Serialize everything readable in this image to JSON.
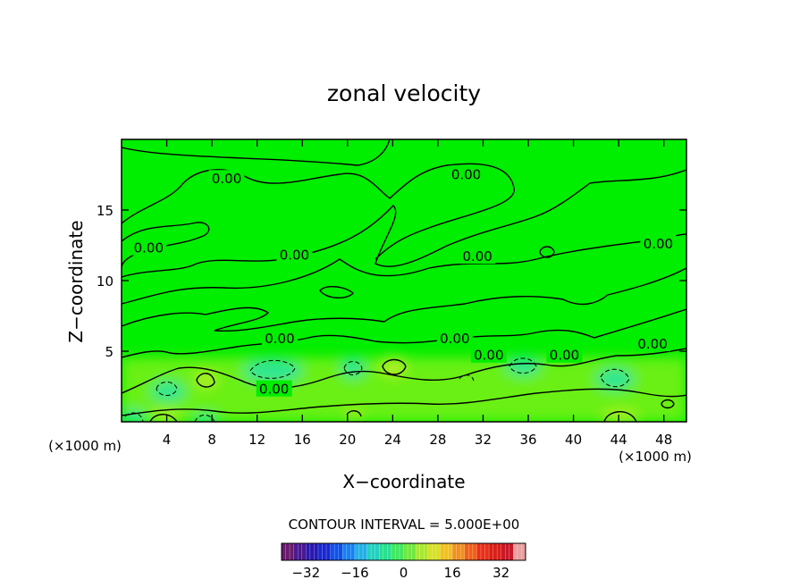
{
  "chart_data": {
    "type": "heatmap",
    "title": "zonal velocity",
    "xlabel": "X−coordinate",
    "ylabel": "Z−coordinate",
    "x_unit_label": "(×1000 m)",
    "x_unit_label_right": "(×1000 m)",
    "xlim": [
      0,
      50
    ],
    "ylim": [
      0,
      20
    ],
    "x_ticks": [
      4,
      8,
      12,
      16,
      20,
      24,
      28,
      32,
      36,
      40,
      44,
      48
    ],
    "y_ticks": [
      5,
      10,
      15
    ],
    "contour_interval_text": "CONTOUR INTERVAL = 5.000E+00",
    "contour_labels": [
      {
        "text": "0.00",
        "x": 9.3,
        "y": 17.2
      },
      {
        "text": "0.00",
        "x": 30.5,
        "y": 17.5
      },
      {
        "text": "0.00",
        "x": 2.4,
        "y": 12.3
      },
      {
        "text": "0.00",
        "x": 15.3,
        "y": 11.8
      },
      {
        "text": "0.00",
        "x": 31.5,
        "y": 11.7
      },
      {
        "text": "0.00",
        "x": 47.5,
        "y": 12.6
      },
      {
        "text": "0.00",
        "x": 14.0,
        "y": 5.9
      },
      {
        "text": "0.00",
        "x": 29.5,
        "y": 5.9
      },
      {
        "text": "0.00",
        "x": 32.5,
        "y": 4.7
      },
      {
        "text": "0.00",
        "x": 39.2,
        "y": 4.7
      },
      {
        "text": "0.00",
        "x": 47.0,
        "y": 5.5
      },
      {
        "text": "0.00",
        "x": 13.5,
        "y": 2.3
      }
    ],
    "colorbar": {
      "range": [
        -40,
        40
      ],
      "ticks": [
        -32,
        -16,
        0,
        16,
        32
      ],
      "colors": [
        "#6a1b6e",
        "#4a1890",
        "#2a19b0",
        "#1828d0",
        "#1050e8",
        "#1880f0",
        "#20b0e8",
        "#22d0c0",
        "#28e090",
        "#40e860",
        "#70e840",
        "#a8e830",
        "#d8e028",
        "#f0c020",
        "#f09020",
        "#f06018",
        "#e83018",
        "#d82018",
        "#c81828",
        "#e8a0a0"
      ]
    },
    "field_colors": {
      "background": "#00ee00",
      "warm_patch": "#8ef01e",
      "cool_patch": "#28e6a0"
    }
  }
}
